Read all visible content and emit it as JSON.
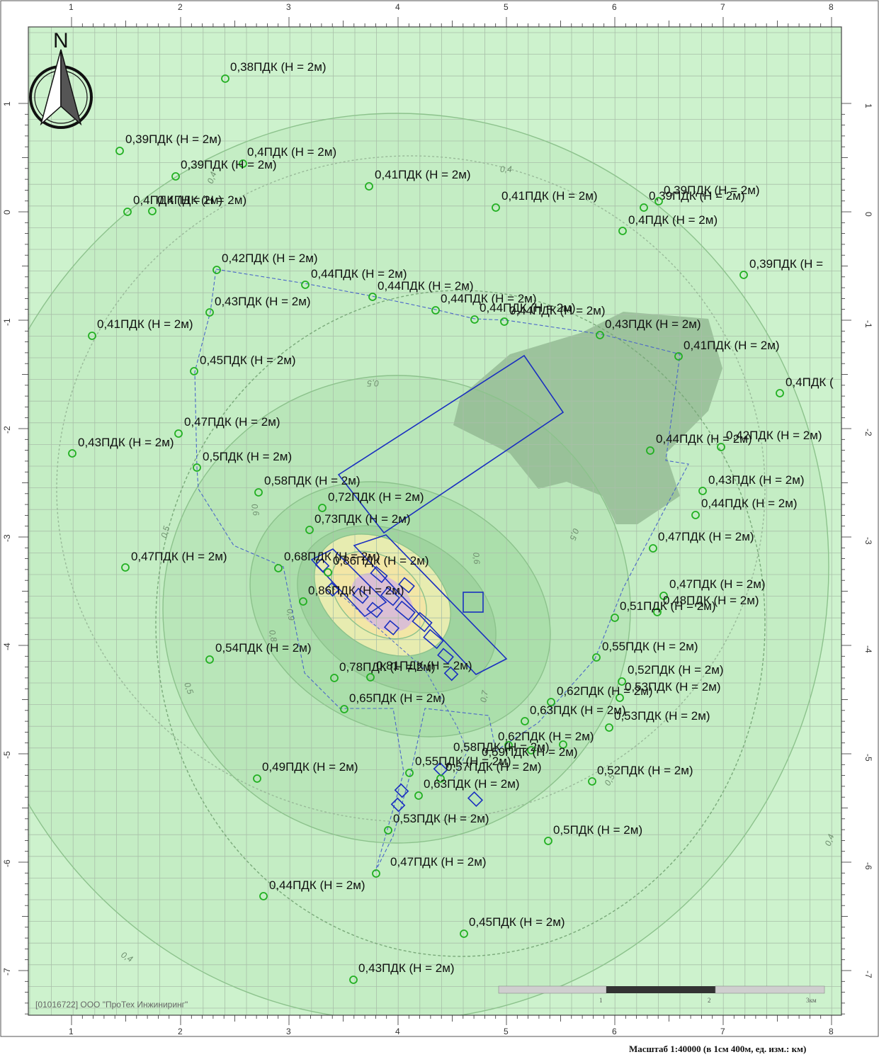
{
  "map": {
    "north_label": "N",
    "credit": "[01016722] ООО \"ПроТех Инжиниринг\"",
    "scale_caption": "Масштаб 1:40000 (в 1см 400м, ед. изм.: км)",
    "scalebar_labels": [
      "1",
      "2",
      "3км"
    ],
    "x_ticks": [
      "1",
      "2",
      "3",
      "4",
      "5",
      "6",
      "7",
      "8"
    ],
    "y_ticks": [
      "1",
      "0",
      "-1",
      "-2",
      "-3",
      "-4",
      "-5",
      "-6",
      "-7"
    ],
    "isoline_labels": [
      "0,4",
      "0,4",
      "0,4",
      "0,4",
      "0,5",
      "0,5",
      "0,5",
      "0,5",
      "0,5",
      "0,6",
      "0,6",
      "0,7",
      "0,8",
      "0,9"
    ],
    "colors": {
      "background": "#cdf2cd",
      "grid": "#a9bfa9",
      "contour": "#8cc28c",
      "site_outline": "#1a2fc0",
      "boundary_dash": "#4a66c8",
      "point_marker": "#22b022",
      "hot_zone": "#f3e6a6",
      "peak_zone": "#d6b8dc",
      "water_body": "#8fb48f"
    },
    "points": [
      {
        "label": "0,38ПДК (Н = 2м)"
      },
      {
        "label": "0,39ПДК (Н = 2м)"
      },
      {
        "label": "0,4ПДК (Н = 2м)"
      },
      {
        "label": "0,39ПДК (Н = 2м)"
      },
      {
        "label": "0,4ПДК (Н = 2м)"
      },
      {
        "label": "0,4ПДК (Н = 2м)"
      },
      {
        "label": "0,41ПДК (Н = 2м)"
      },
      {
        "label": "0,41ПДК (Н = 2м)"
      },
      {
        "label": "0,39ПДК (Н = 2м)"
      },
      {
        "label": "0,39ПДК (Н = 2м)"
      },
      {
        "label": "0,4ПДК (Н = 2м)"
      },
      {
        "label": "0,39ПДК (Н ="
      },
      {
        "label": "0,42ПДК (Н = 2м)"
      },
      {
        "label": "0,44ПДК (Н = 2м)"
      },
      {
        "label": "0,44ПДК (Н = 2м)"
      },
      {
        "label": "0,44ПДК (Н = 2м)"
      },
      {
        "label": "0,44ПДК (Н = 2м)"
      },
      {
        "label": "0,44ПДК (Н = 2м)"
      },
      {
        "label": "0,43ПДК (Н = 2м)"
      },
      {
        "label": "0,43ПДК (Н = 2м)"
      },
      {
        "label": "0,41ПДК (Н = 2м)"
      },
      {
        "label": "0,41ПДК (Н = 2м)"
      },
      {
        "label": "0,45ПДК (Н = 2м)"
      },
      {
        "label": "0,4ПДК ("
      },
      {
        "label": "0,47ПДК (Н = 2м)"
      },
      {
        "label": "0,43ПДК (Н = 2м)"
      },
      {
        "label": "0,5ПДК (Н = 2м)"
      },
      {
        "label": "0,44ПДК (Н = 2м)"
      },
      {
        "label": "0,42ПДК (Н = 2м)"
      },
      {
        "label": "0,58ПДК (Н = 2м)"
      },
      {
        "label": "0,72ПДК (Н = 2м)"
      },
      {
        "label": "0,43ПДК (Н = 2м)"
      },
      {
        "label": "0,44ПДК (Н = 2м)"
      },
      {
        "label": "0,73ПДК (Н = 2м)"
      },
      {
        "label": "0,47ПДК (Н = 2м)"
      },
      {
        "label": "0,47ПДК (Н = 2м)"
      },
      {
        "label": "0,68ПДК (Н = 2м)"
      },
      {
        "label": "0,86ПДК (Н = 2м)"
      },
      {
        "label": "0,86ПДК (Н = 2м)"
      },
      {
        "label": "0,47ПДК (Н = 2м)"
      },
      {
        "label": "0,48ПДК (Н = 2м)"
      },
      {
        "label": "0,51ПДК (Н = 2м)"
      },
      {
        "label": "0,55ПДК (Н = 2м)"
      },
      {
        "label": "0,54ПДК (Н = 2м)"
      },
      {
        "label": "0,78ПДК (Н = 2м)"
      },
      {
        "label": "0,81ПДК (Н = 2м)"
      },
      {
        "label": "0,52ПДК (Н = 2м)"
      },
      {
        "label": "0,53ПДК (Н = 2м)"
      },
      {
        "label": "0,62ПДК (Н = 2м)"
      },
      {
        "label": "0,65ПДК (Н = 2м)"
      },
      {
        "label": "0,63ПДК (Н = 2м)"
      },
      {
        "label": "0,53ПДК (Н = 2м)"
      },
      {
        "label": "0,62ПДК (Н = 2м)"
      },
      {
        "label": "0,58ПДК (Н = 2м)"
      },
      {
        "label": "0,59ПДК (Н = 2м)"
      },
      {
        "label": "0,49ПДК (Н = 2м)"
      },
      {
        "label": "0,55ПДК (Н = 2м)"
      },
      {
        "label": "0,57ПДК (Н = 2м)"
      },
      {
        "label": "0,52ПДК (Н = 2м)"
      },
      {
        "label": "0,63ПДК (Н = 2м)"
      },
      {
        "label": "0,53ПДК (Н = 2м)"
      },
      {
        "label": "0,5ПДК (Н = 2м)"
      },
      {
        "label": "0,47ПДК (Н = 2м)"
      },
      {
        "label": "0,44ПДК (Н = 2м)"
      },
      {
        "label": "0,45ПДК (Н = 2м)"
      },
      {
        "label": "0,43ПДК (Н = 2м)"
      }
    ]
  }
}
